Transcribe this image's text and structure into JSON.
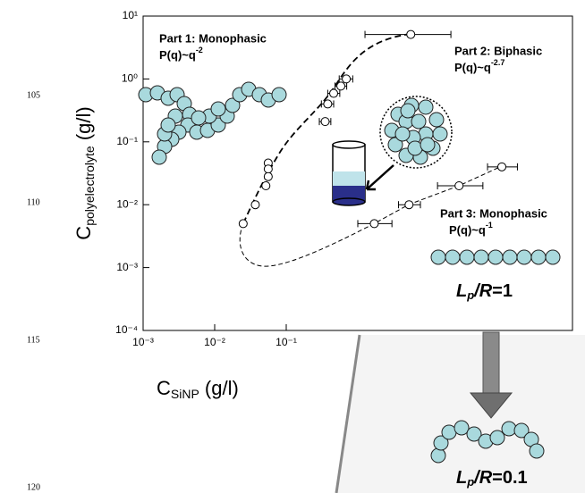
{
  "line_numbers": [
    "105",
    "110",
    "115",
    "120"
  ],
  "chart_data": {
    "type": "scatter",
    "x_label": {
      "main": "C",
      "sub": "SiNP",
      "unit": " (g/l)"
    },
    "y_label": {
      "main": "C",
      "sub": "polyelectrolyte",
      "unit": " (g/l)"
    },
    "x_log": true,
    "y_log": true,
    "xlim": [
      0.001,
      1000
    ],
    "ylim": [
      0.0001,
      10
    ],
    "xticks": [
      {
        "value": 0.001,
        "label": "10⁻³"
      },
      {
        "value": 0.01,
        "label": "10⁻²"
      },
      {
        "value": 0.1,
        "label": "10⁻¹"
      }
    ],
    "yticks": [
      {
        "value": 0.0001,
        "label": "10⁻⁴"
      },
      {
        "value": 0.001,
        "label": "10⁻³"
      },
      {
        "value": 0.01,
        "label": "10⁻²"
      },
      {
        "value": 0.1,
        "label": "10⁻¹"
      },
      {
        "value": 1,
        "label": "10⁰"
      },
      {
        "value": 10,
        "label": "10¹"
      }
    ],
    "series": [
      {
        "color": "#ffffff",
        "x": [
          5.5,
          0.69,
          0.58,
          0.46,
          0.38,
          0.35,
          0.056,
          0.056,
          0.056,
          0.052,
          0.037,
          0.025
        ],
        "values": [
          5.1,
          1.0,
          0.77,
          0.59,
          0.4,
          0.21,
          0.046,
          0.037,
          0.028,
          0.02,
          0.01,
          0.005
        ],
        "x_lo": [
          1.26,
          0.55,
          0.48,
          0.38,
          0.31,
          0.29,
          null,
          null,
          null,
          null,
          null,
          null
        ],
        "x_hi": [
          20,
          0.85,
          0.7,
          0.56,
          0.46,
          0.42,
          null,
          null,
          null,
          null,
          null,
          null
        ]
      },
      {
        "color": "#ffffff",
        "x": [
          1.7,
          5.2,
          26,
          103
        ],
        "values": [
          0.005,
          0.01,
          0.02,
          0.04
        ],
        "x_lo": [
          1.0,
          3.7,
          13,
          65
        ],
        "x_hi": [
          3.0,
          7.5,
          56,
          170
        ]
      }
    ],
    "annotations": [
      {
        "title": "Part 1: Monophasic",
        "formula": "P(q)~q",
        "exponent": "-2"
      },
      {
        "title": "Part 2: Biphasic",
        "formula": "P(q)~q",
        "exponent": "-2.7"
      },
      {
        "title": "Part 3: Monophasic",
        "formula": "P(q)~q",
        "exponent": "-1"
      }
    ],
    "ratio_labels": [
      {
        "symbol": "L",
        "subscript": "p",
        "ratio": "/R",
        "suffix": "=1"
      },
      {
        "symbol": "L",
        "subscript": "p",
        "ratio": "/R",
        "suffix": "=0.1"
      }
    ]
  }
}
